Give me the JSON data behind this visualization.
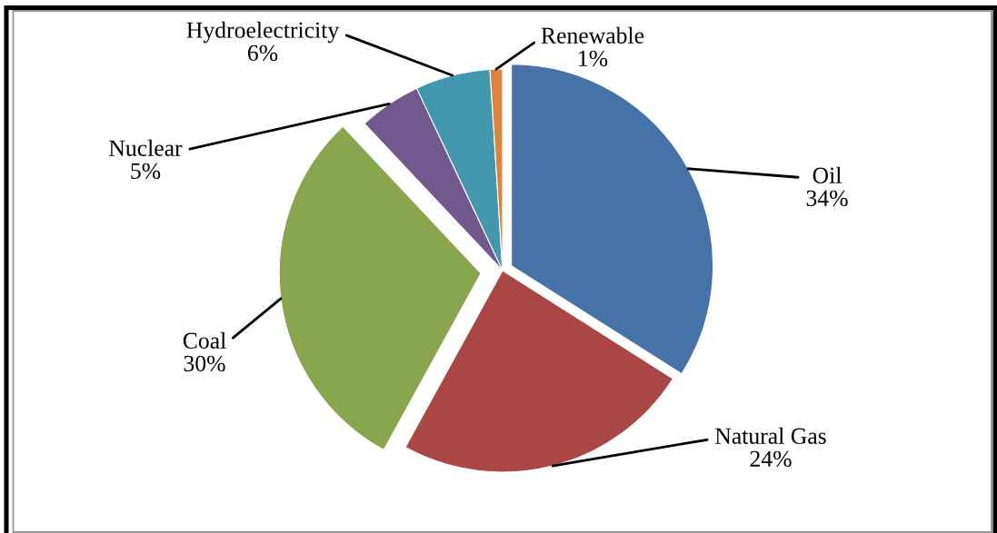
{
  "chart_data": {
    "type": "pie",
    "categories": [
      "Oil",
      "Natural Gas",
      "Coal",
      "Nuclear",
      "Hydroelectricity",
      "Renewable"
    ],
    "values": [
      34,
      24,
      30,
      5,
      6,
      1
    ],
    "value_labels": [
      "34%",
      "24%",
      "30%",
      "5%",
      "6%",
      "1%"
    ],
    "colors": [
      "#4572a7",
      "#aa4643",
      "#89a54e",
      "#71588f",
      "#4198af",
      "#db843d"
    ]
  }
}
